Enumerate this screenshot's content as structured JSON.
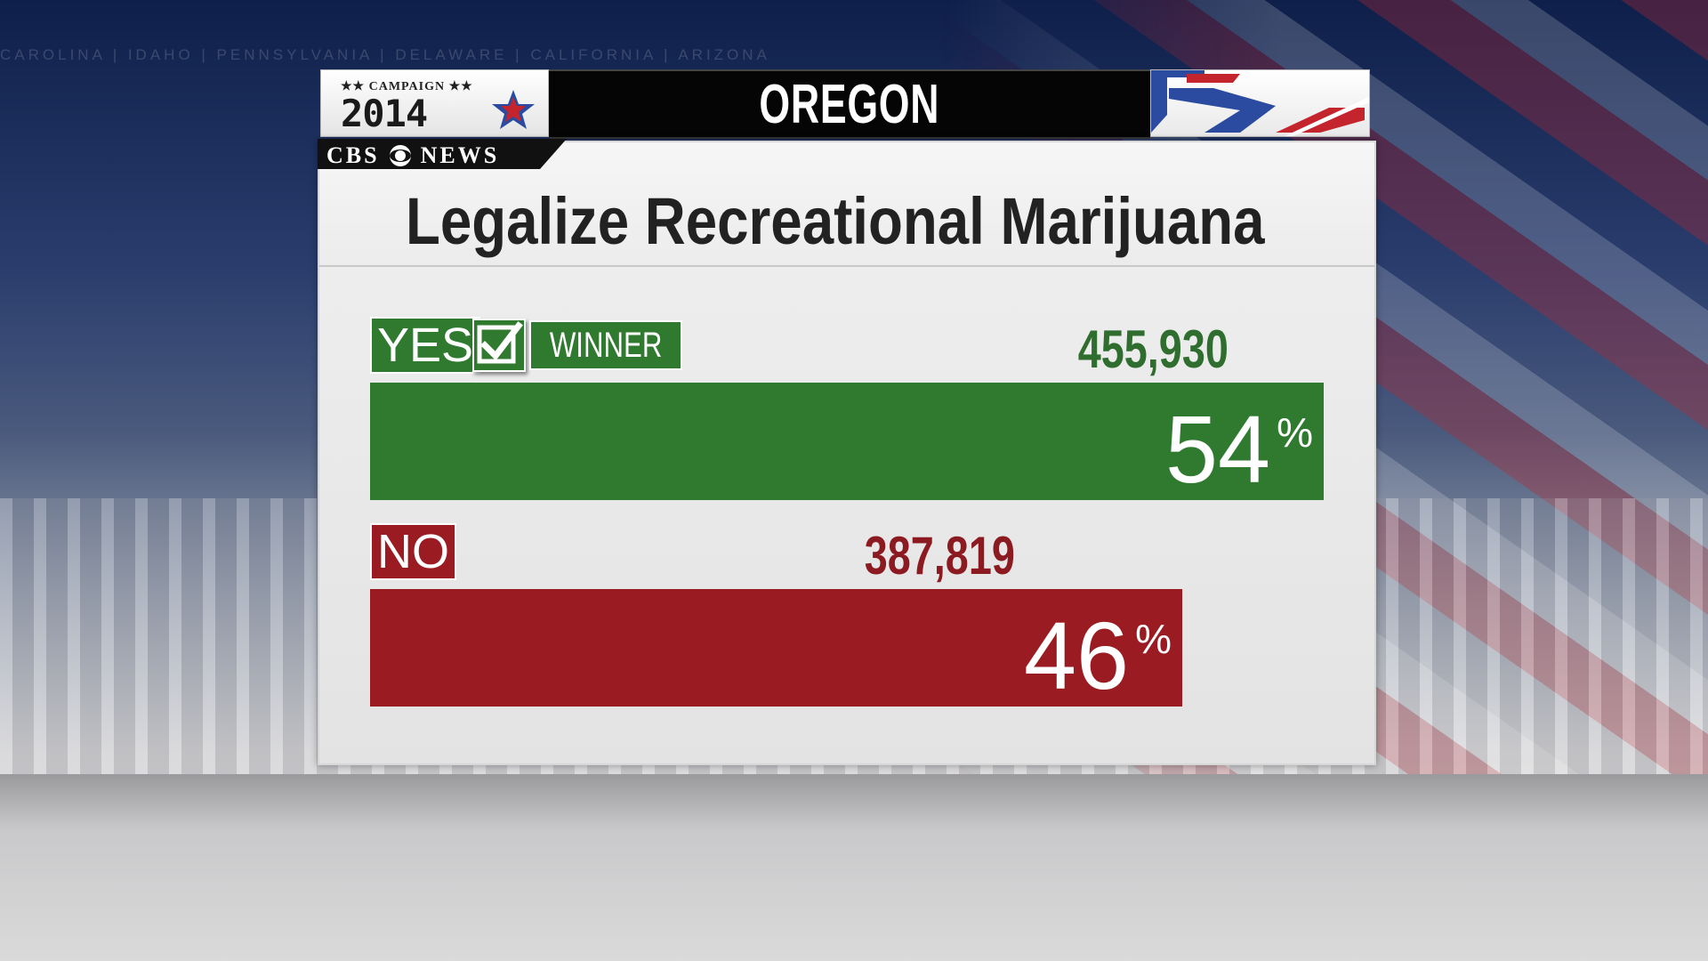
{
  "background": {
    "state_names": "CAROLINA | IDAHO | PENNSYLVANIA | DELAWARE | CALIFORNIA | ARIZONA"
  },
  "header": {
    "logo_top": "★★ CAMPAIGN ★★",
    "logo_year": "2014",
    "logo_star_icon": "star-icon",
    "state": "OREGON"
  },
  "network": {
    "name_left": "CBS",
    "name_right": "NEWS",
    "logo_icon": "cbs-eye-icon"
  },
  "measure": {
    "title": "Legalize Recreational Marijuana",
    "winner_label": "WINNER",
    "winner_icon": "checkmark-icon"
  },
  "colors": {
    "yes": "#2f7a2f",
    "no": "#9b1b22",
    "accent_red": "#c4242c",
    "accent_blue": "#2a4ba0"
  },
  "chart_data": {
    "type": "bar",
    "categories": [
      "YES",
      "NO"
    ],
    "votes": [
      "455,930",
      "387,819"
    ],
    "values": [
      54,
      46
    ],
    "unit": "%",
    "winner": "YES",
    "title": "Legalize Recreational Marijuana"
  }
}
